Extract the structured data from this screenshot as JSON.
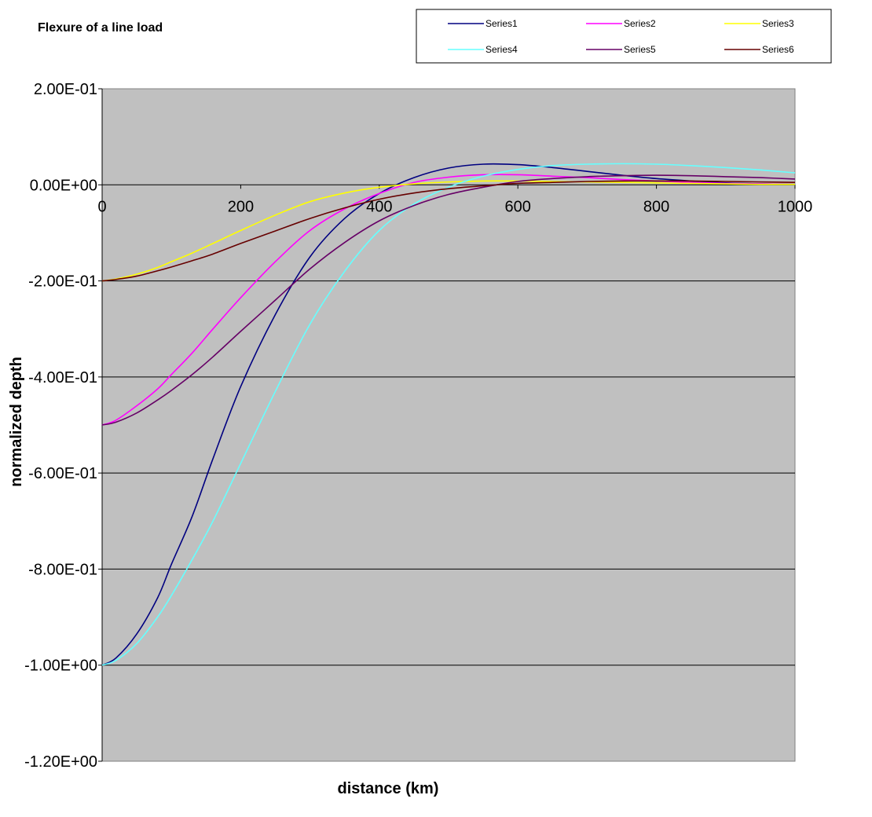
{
  "chart_data": {
    "type": "line",
    "title": "Flexure of a line load",
    "xlabel": "distance (km)",
    "ylabel": "normalized depth",
    "xlim": [
      0,
      1000
    ],
    "ylim": [
      -1.2,
      0.2
    ],
    "x_ticks": [
      0,
      200,
      400,
      600,
      800,
      1000
    ],
    "y_ticks": [
      0.2,
      0,
      -0.2,
      -0.4,
      -0.6,
      -0.8,
      -1.0,
      -1.2
    ],
    "x_tick_labels": [
      "0",
      "200",
      "400",
      "600",
      "800",
      "1000"
    ],
    "y_tick_labels": [
      "2.00E-01",
      "0.00E+00",
      "-2.00E-01",
      "-4.00E-01",
      "-6.00E-01",
      "-8.00E-01",
      "-1.00E+00",
      "-1.20E+00"
    ],
    "grid": "horizontal",
    "plot_background": "#c0c0c0",
    "legend_position": "top-right",
    "series": [
      {
        "name": "Series1",
        "color": "#000080",
        "x": [
          0,
          20,
          50,
          80,
          100,
          130,
          160,
          200,
          250,
          300,
          350,
          400,
          450,
          500,
          550,
          600,
          650,
          700,
          750,
          800,
          850,
          900,
          950,
          1000
        ],
        "values": [
          -1.0,
          -0.985,
          -0.935,
          -0.86,
          -0.79,
          -0.69,
          -0.57,
          -0.42,
          -0.27,
          -0.15,
          -0.07,
          -0.018,
          0.015,
          0.035,
          0.043,
          0.042,
          0.036,
          0.028,
          0.02,
          0.013,
          0.008,
          0.004,
          0.002,
          0.001
        ]
      },
      {
        "name": "Series2",
        "color": "#ff00ff",
        "x": [
          0,
          20,
          50,
          80,
          100,
          130,
          160,
          200,
          250,
          300,
          350,
          400,
          450,
          500,
          550,
          600,
          650,
          700,
          750,
          800,
          850,
          900,
          950,
          1000
        ],
        "values": [
          -0.5,
          -0.49,
          -0.46,
          -0.425,
          -0.395,
          -0.35,
          -0.3,
          -0.235,
          -0.16,
          -0.095,
          -0.05,
          -0.018,
          0.005,
          0.016,
          0.021,
          0.021,
          0.018,
          0.015,
          0.011,
          0.008,
          0.005,
          0.003,
          0.002,
          0.001
        ]
      },
      {
        "name": "Series3",
        "color": "#ffff00",
        "x": [
          0,
          20,
          50,
          80,
          100,
          130,
          160,
          200,
          250,
          300,
          350,
          400,
          450,
          500,
          550,
          600,
          650,
          700,
          750,
          800,
          850,
          900,
          950,
          1000
        ],
        "values": [
          -0.2,
          -0.196,
          -0.186,
          -0.172,
          -0.16,
          -0.142,
          -0.122,
          -0.095,
          -0.063,
          -0.035,
          -0.017,
          -0.005,
          0.002,
          0.006,
          0.008,
          0.008,
          0.007,
          0.006,
          0.005,
          0.004,
          0.003,
          0.002,
          0.001,
          0.001
        ]
      },
      {
        "name": "Series4",
        "color": "#66ffff",
        "x": [
          0,
          20,
          50,
          80,
          100,
          130,
          160,
          200,
          250,
          300,
          350,
          400,
          450,
          500,
          550,
          600,
          650,
          700,
          750,
          800,
          850,
          900,
          950,
          1000
        ],
        "values": [
          -1.0,
          -0.99,
          -0.955,
          -0.9,
          -0.855,
          -0.78,
          -0.7,
          -0.58,
          -0.43,
          -0.29,
          -0.18,
          -0.095,
          -0.04,
          -0.005,
          0.018,
          0.032,
          0.04,
          0.043,
          0.044,
          0.043,
          0.04,
          0.036,
          0.031,
          0.025
        ]
      },
      {
        "name": "Series5",
        "color": "#660066",
        "x": [
          0,
          20,
          50,
          80,
          100,
          130,
          160,
          200,
          250,
          300,
          350,
          400,
          450,
          500,
          550,
          600,
          650,
          700,
          750,
          800,
          850,
          900,
          950,
          1000
        ],
        "values": [
          -0.5,
          -0.494,
          -0.475,
          -0.448,
          -0.428,
          -0.395,
          -0.358,
          -0.305,
          -0.24,
          -0.175,
          -0.12,
          -0.075,
          -0.043,
          -0.02,
          -0.005,
          0.007,
          0.013,
          0.017,
          0.019,
          0.02,
          0.019,
          0.017,
          0.015,
          0.012
        ]
      },
      {
        "name": "Series6",
        "color": "#660000",
        "x": [
          0,
          20,
          50,
          80,
          100,
          130,
          160,
          200,
          250,
          300,
          350,
          400,
          450,
          500,
          550,
          600,
          650,
          700,
          750,
          800,
          850,
          900,
          950,
          1000
        ],
        "values": [
          -0.2,
          -0.197,
          -0.19,
          -0.179,
          -0.171,
          -0.158,
          -0.144,
          -0.122,
          -0.096,
          -0.07,
          -0.048,
          -0.03,
          -0.017,
          -0.008,
          -0.002,
          0.003,
          0.005,
          0.007,
          0.008,
          0.008,
          0.008,
          0.007,
          0.006,
          0.005
        ]
      }
    ]
  }
}
